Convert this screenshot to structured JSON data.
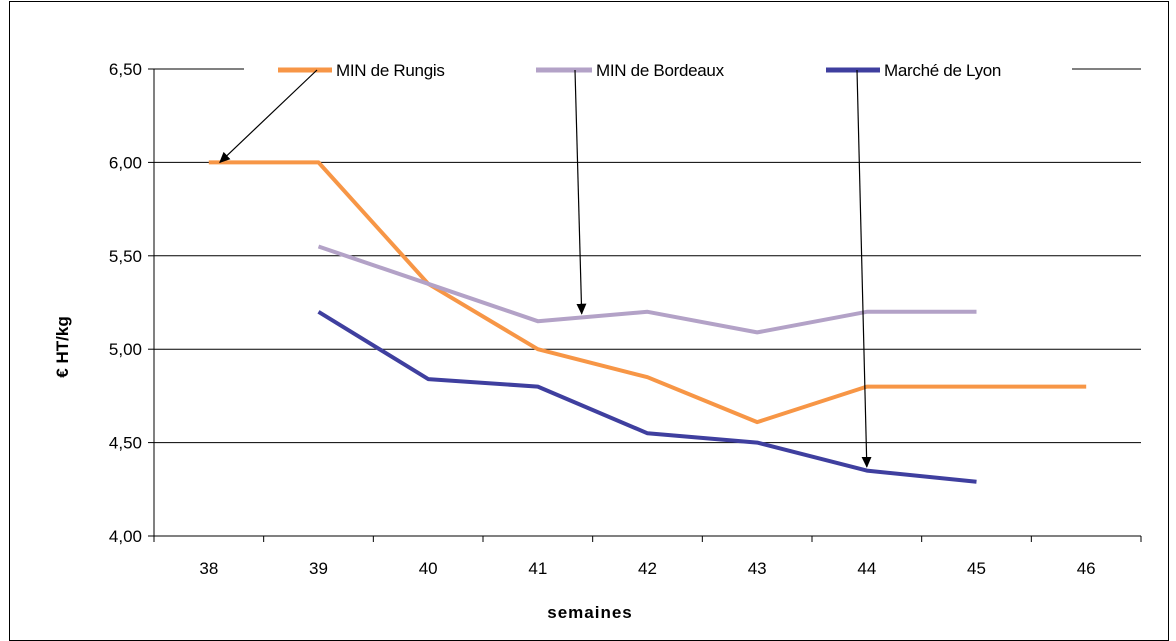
{
  "chart_data": {
    "type": "line",
    "title": "",
    "xlabel": "semaines",
    "ylabel": "€ HT/kg",
    "x_categories": [
      "38",
      "39",
      "40",
      "41",
      "42",
      "43",
      "44",
      "45",
      "46"
    ],
    "y_ticks": [
      "4,00",
      "4,50",
      "5,00",
      "5,50",
      "6,00",
      "6,50"
    ],
    "ylim": [
      4.0,
      6.5
    ],
    "grid": "horizontal",
    "legend_position": "top",
    "series": [
      {
        "name": "MIN de Rungis",
        "color": "#F79646",
        "points": [
          [
            38.5,
            6.0
          ],
          [
            39.5,
            6.0
          ],
          [
            40.5,
            5.35
          ],
          [
            41.5,
            5.0
          ],
          [
            42.5,
            4.85
          ],
          [
            43.5,
            4.61
          ],
          [
            44.5,
            4.8
          ],
          [
            45.5,
            4.8
          ],
          [
            46.5,
            4.8
          ]
        ]
      },
      {
        "name": "MIN de Bordeaux",
        "color": "#B3A2C7",
        "points": [
          [
            39.5,
            5.55
          ],
          [
            40.5,
            5.35
          ],
          [
            41.5,
            5.15
          ],
          [
            42.5,
            5.2
          ],
          [
            43.5,
            5.09
          ],
          [
            44.5,
            5.2
          ],
          [
            45.5,
            5.2
          ]
        ]
      },
      {
        "name": "Marché de Lyon",
        "color": "#3F3F9F",
        "points": [
          [
            39.5,
            5.2
          ],
          [
            40.5,
            4.84
          ],
          [
            41.5,
            4.8
          ],
          [
            42.5,
            4.55
          ],
          [
            43.5,
            4.5
          ],
          [
            44.5,
            4.35
          ],
          [
            45.5,
            4.29
          ]
        ]
      }
    ],
    "annotations": [
      {
        "type": "arrow",
        "series": "MIN de Rungis",
        "target": [
          38.6,
          6.0
        ]
      },
      {
        "type": "arrow",
        "series": "MIN de Bordeaux",
        "target": [
          41.9,
          5.19
        ]
      },
      {
        "type": "arrow",
        "series": "Marché de Lyon",
        "target": [
          44.5,
          4.37
        ]
      }
    ]
  }
}
